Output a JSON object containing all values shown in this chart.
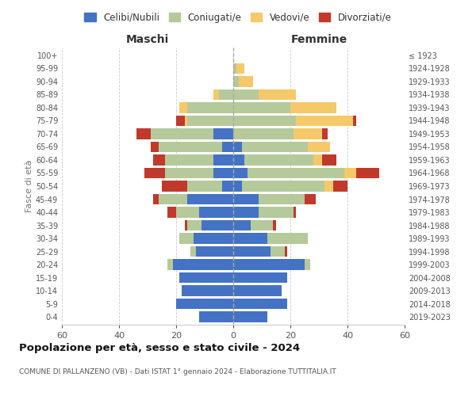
{
  "age_groups": [
    "0-4",
    "5-9",
    "10-14",
    "15-19",
    "20-24",
    "25-29",
    "30-34",
    "35-39",
    "40-44",
    "45-49",
    "50-54",
    "55-59",
    "60-64",
    "65-69",
    "70-74",
    "75-79",
    "80-84",
    "85-89",
    "90-94",
    "95-99",
    "100+"
  ],
  "birth_years": [
    "2019-2023",
    "2014-2018",
    "2009-2013",
    "2004-2008",
    "1999-2003",
    "1994-1998",
    "1989-1993",
    "1984-1988",
    "1979-1983",
    "1974-1978",
    "1969-1973",
    "1964-1968",
    "1959-1963",
    "1954-1958",
    "1949-1953",
    "1944-1948",
    "1939-1943",
    "1934-1938",
    "1929-1933",
    "1924-1928",
    "≤ 1923"
  ],
  "male": {
    "celibi": [
      12,
      20,
      18,
      19,
      21,
      13,
      14,
      11,
      12,
      16,
      4,
      7,
      7,
      4,
      7,
      0,
      0,
      0,
      0,
      0,
      0
    ],
    "coniugati": [
      0,
      0,
      0,
      0,
      2,
      2,
      5,
      5,
      8,
      10,
      12,
      17,
      17,
      22,
      22,
      16,
      16,
      5,
      0,
      0,
      0
    ],
    "vedovi": [
      0,
      0,
      0,
      0,
      0,
      0,
      0,
      0,
      0,
      0,
      0,
      0,
      0,
      0,
      0,
      1,
      3,
      2,
      0,
      0,
      0
    ],
    "divorziati": [
      0,
      0,
      0,
      0,
      0,
      0,
      0,
      1,
      3,
      2,
      9,
      7,
      4,
      3,
      5,
      3,
      0,
      0,
      0,
      0,
      0
    ]
  },
  "female": {
    "nubili": [
      12,
      19,
      17,
      19,
      25,
      13,
      12,
      6,
      9,
      9,
      3,
      5,
      4,
      3,
      0,
      0,
      0,
      0,
      0,
      0,
      0
    ],
    "coniugate": [
      0,
      0,
      0,
      0,
      2,
      5,
      14,
      8,
      12,
      16,
      29,
      34,
      24,
      23,
      21,
      22,
      20,
      9,
      2,
      1,
      0
    ],
    "vedove": [
      0,
      0,
      0,
      0,
      0,
      0,
      0,
      0,
      0,
      0,
      3,
      4,
      3,
      8,
      10,
      20,
      16,
      13,
      5,
      3,
      0
    ],
    "divorziate": [
      0,
      0,
      0,
      0,
      0,
      1,
      0,
      1,
      1,
      4,
      5,
      8,
      5,
      0,
      2,
      1,
      0,
      0,
      0,
      0,
      0
    ]
  },
  "colors": {
    "celibi": "#4472c4",
    "coniugati": "#b5c99a",
    "vedovi": "#f5c96a",
    "divorziati": "#c0392b"
  },
  "xlim": 60,
  "title": "Popolazione per età, sesso e stato civile - 2024",
  "subtitle": "COMUNE DI PALLANZENO (VB) - Dati ISTAT 1° gennaio 2024 - Elaborazione TUTTITALIA.IT",
  "legend_labels": [
    "Celibi/Nubili",
    "Coniugati/e",
    "Vedovi/e",
    "Divorziati/e"
  ],
  "ylabel_left": "Fasce di età",
  "xlabel_male": "Maschi",
  "xlabel_female": "Femmine"
}
